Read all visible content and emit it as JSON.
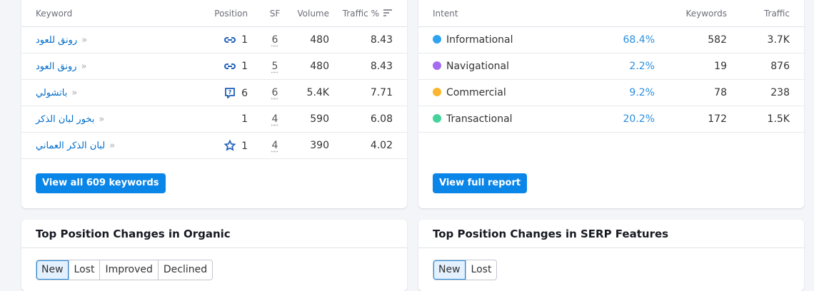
{
  "keywords_table": {
    "columns": [
      "Keyword",
      "Position",
      "SF",
      "Volume",
      "Traffic %"
    ],
    "rows": [
      {
        "keyword": "رونق للعود",
        "position": 1,
        "sf": 6,
        "volume": 480,
        "traffic": 8.43
      },
      {
        "keyword": "رونق العود",
        "position": 1,
        "sf": 5,
        "volume": 480,
        "traffic": 8.43
      },
      {
        "keyword": "باتشولي",
        "position": 6,
        "sf": 6,
        "volume": "5.4K",
        "traffic": 7.71
      },
      {
        "keyword": "بخور لبان الذكر",
        "position": 1,
        "sf": 4,
        "volume": 590,
        "traffic": 6.08
      },
      {
        "keyword": "لبان الذكر العماني",
        "position": 1,
        "sf": 4,
        "volume": 390,
        "traffic": 4.02
      }
    ],
    "button": "View all 609 keywords"
  },
  "intent_table": {
    "columns": [
      "Intent",
      "Keywords",
      "Traffic"
    ],
    "rows": [
      {
        "intent": "Informational",
        "share": "68.4%",
        "keywords": 582,
        "traffic": "3.7K"
      },
      {
        "intent": "Navigational",
        "share": "2.2%",
        "keywords": 19,
        "traffic": 876
      },
      {
        "intent": "Commercial",
        "share": "9.2%",
        "keywords": 78,
        "traffic": 238
      },
      {
        "intent": "Transactional",
        "share": "20.2%",
        "keywords": 172,
        "traffic": "1.5K"
      }
    ],
    "button": "View full report"
  },
  "organic_changes": {
    "title": "Top Position Changes in Organic",
    "tabs": [
      "New",
      "Lost",
      "Improved",
      "Declined"
    ]
  },
  "serp_changes": {
    "title": "Top Position Changes in SERP Features",
    "tabs": [
      "New",
      "Lost"
    ]
  }
}
